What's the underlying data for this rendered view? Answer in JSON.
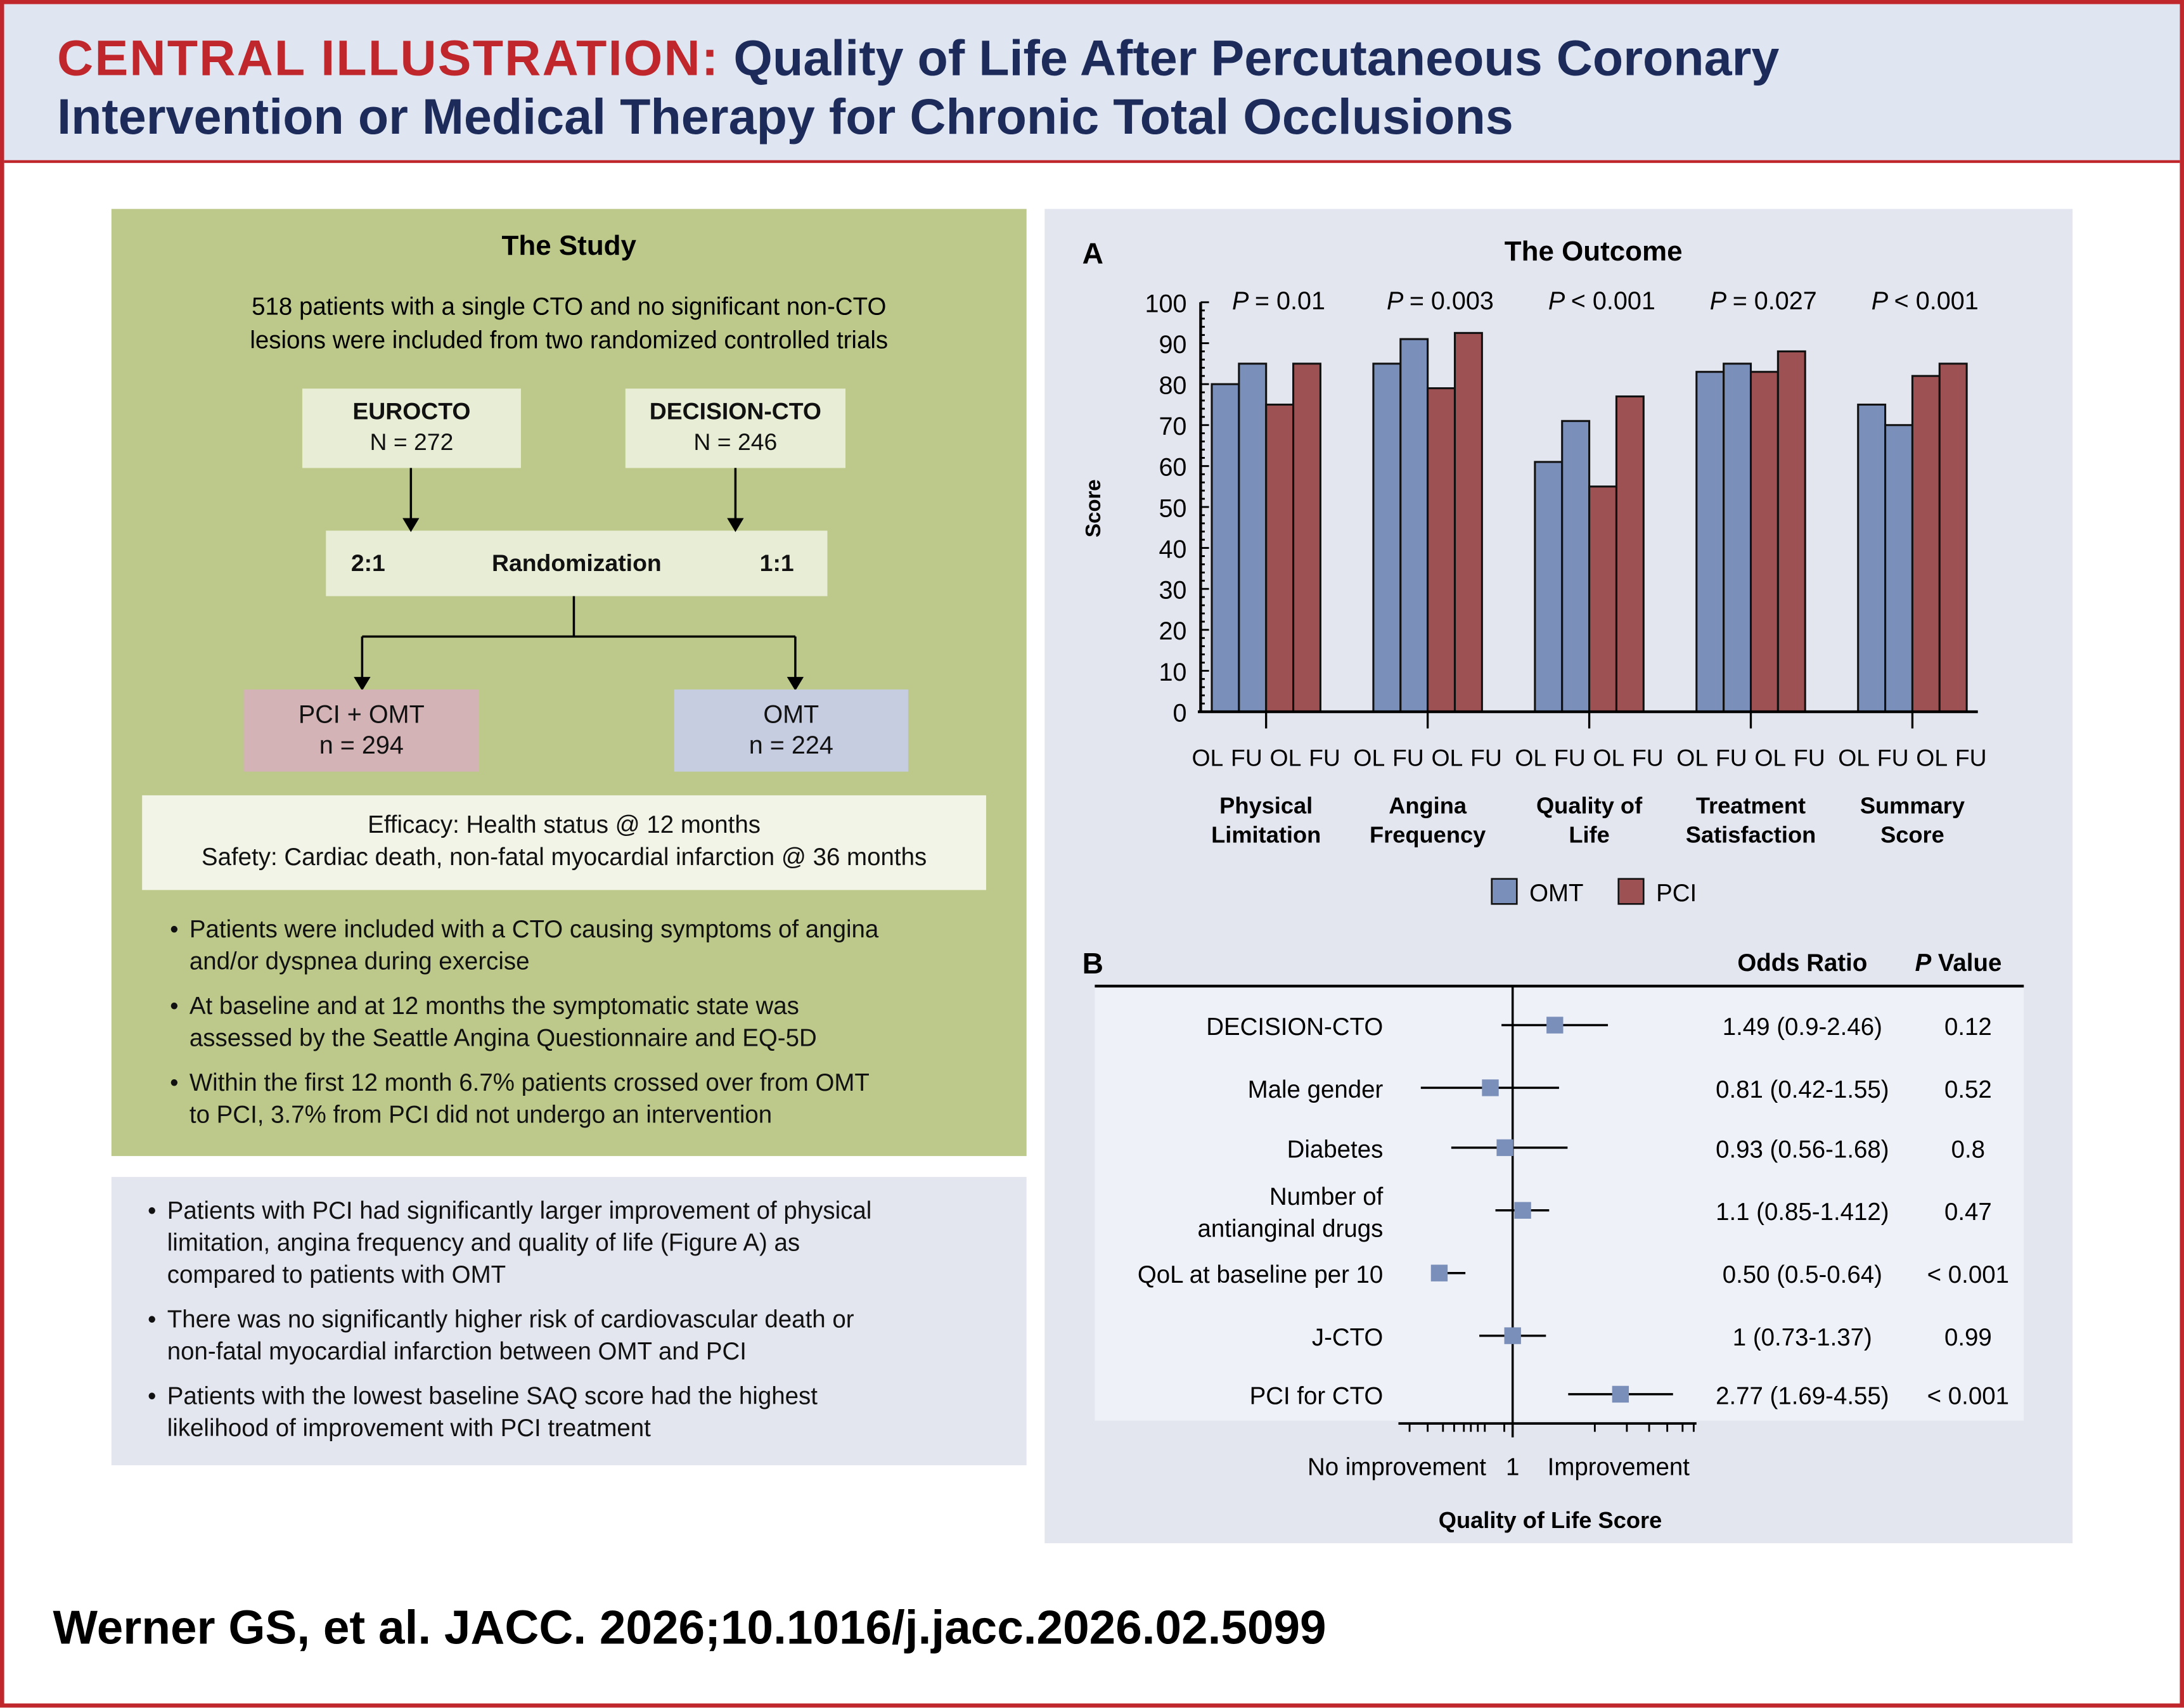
{
  "header": {
    "label": "CENTRAL ILLUSTRATION:",
    "title_line1": "Quality of Life After Percutaneous Coronary",
    "title_line2": "Intervention or Medical Therapy for Chronic Total Occlusions"
  },
  "study": {
    "heading": "The Study",
    "intro_line1": "518 patients with a single CTO and no significant non-CTO",
    "intro_line2": "lesions were included from two randomized controlled trials",
    "trials": [
      {
        "name": "EUROCTO",
        "n": "N = 272"
      },
      {
        "name": "DECISION-CTO",
        "n": "N = 246"
      }
    ],
    "randomization": {
      "label": "Randomization",
      "left_ratio": "2:1",
      "right_ratio": "1:1"
    },
    "arms": [
      {
        "name": "PCI + OMT",
        "n": "n = 294",
        "color": "#d4b3b6"
      },
      {
        "name": "OMT",
        "n": "n = 224",
        "color": "#c6cde0"
      }
    ],
    "endpoints": [
      "Efficacy: Health status @ 12 months",
      "Safety: Cardiac death, non-fatal myocardial infarction @ 36 months"
    ],
    "bullets": [
      [
        "Patients were included with a CTO causing symptoms of angina",
        "and/or dyspnea during exercise"
      ],
      [
        "At baseline and at 12 months the symptomatic state was",
        "assessed by the Seattle Angina Questionnaire and EQ-5D"
      ],
      [
        "Within the first 12 month 6.7% patients crossed over from OMT",
        "to PCI, 3.7% from PCI did not undergo an intervention"
      ]
    ]
  },
  "findings": [
    [
      "Patients with PCI had significantly larger improvement of physical",
      "limitation, angina frequency and quality of life (Figure A) as",
      "compared to patients with OMT"
    ],
    [
      "There was no significantly higher risk of cardiovascular death or",
      "non-fatal myocardial infarction between OMT and PCI"
    ],
    [
      "Patients with the lowest baseline SAQ score had the highest",
      "likelihood of improvement with PCI treatment"
    ]
  ],
  "outcome": {
    "heading": "The Outcome",
    "panel_a": "A",
    "panel_b": "B"
  },
  "chart_data": [
    {
      "type": "bar",
      "ylabel": "Score",
      "ylim": [
        0,
        100
      ],
      "yticks": [
        0,
        10,
        20,
        30,
        40,
        50,
        60,
        70,
        80,
        90,
        100
      ],
      "categories": [
        [
          "Physical",
          "Limitation"
        ],
        [
          "Angina",
          "Frequency"
        ],
        [
          "Quality of",
          "Life"
        ],
        [
          "Treatment",
          "Satisfaction"
        ],
        [
          "Summary",
          "Score"
        ]
      ],
      "sub_labels": [
        "OL",
        "FU",
        "OL",
        "FU"
      ],
      "p_values": [
        "= 0.01",
        "= 0.003",
        "< 0.001",
        "= 0.027",
        "< 0.001"
      ],
      "p_prefix": "P",
      "series": [
        {
          "name": "OMT",
          "color": "#7a8fba",
          "OL": [
            80,
            85,
            61,
            83,
            75
          ],
          "FU": [
            85,
            91,
            71,
            85,
            70
          ]
        },
        {
          "name": "PCI",
          "color": "#9e5152",
          "OL": [
            75,
            79,
            55,
            83,
            82
          ],
          "FU": [
            85,
            92.5,
            77,
            88,
            85
          ]
        }
      ],
      "legend": "bottom"
    },
    {
      "type": "forest",
      "scale": "log",
      "reference": 1,
      "headers": {
        "or": "Odds Ratio",
        "p_prefix": "P",
        "p": " Value"
      },
      "rows": [
        {
          "label": [
            "DECISION-CTO"
          ],
          "or": 1.49,
          "lo": 0.9,
          "hi": 2.46,
          "text": "1.49 (0.9-2.46)",
          "p": "0.12"
        },
        {
          "label": [
            "Male gender"
          ],
          "or": 0.81,
          "lo": 0.42,
          "hi": 1.55,
          "text": "0.81 (0.42-1.55)",
          "p": "0.52"
        },
        {
          "label": [
            "Diabetes"
          ],
          "or": 0.93,
          "lo": 0.56,
          "hi": 1.68,
          "text": "0.93 (0.56-1.68)",
          "p": "0.8"
        },
        {
          "label": [
            "Number of",
            "antianginal drugs"
          ],
          "or": 1.1,
          "lo": 0.85,
          "hi": 1.412,
          "text": "1.1 (0.85-1.412)",
          "p": "0.47"
        },
        {
          "label": [
            "QoL at baseline per 10"
          ],
          "or": 0.5,
          "lo": 0.5,
          "hi": 0.64,
          "text": "0.50 (0.5-0.64)",
          "p": "< 0.001"
        },
        {
          "label": [
            "J-CTO"
          ],
          "or": 1,
          "lo": 0.73,
          "hi": 1.37,
          "text": "1 (0.73-1.37)",
          "p": "0.99"
        },
        {
          "label": [
            "PCI for CTO"
          ],
          "or": 2.77,
          "lo": 1.69,
          "hi": 4.55,
          "text": "2.77 (1.69-4.55)",
          "p": "< 0.001"
        }
      ],
      "left_label": "No improvement",
      "center_label": "1",
      "right_label": "Improvement",
      "xlabel": "Quality of Life Score",
      "marker_color": "#7a8fba"
    }
  ],
  "citation": "Werner GS, et al. JACC. 2026;10.1016/j.jacc.2026.02.5099"
}
